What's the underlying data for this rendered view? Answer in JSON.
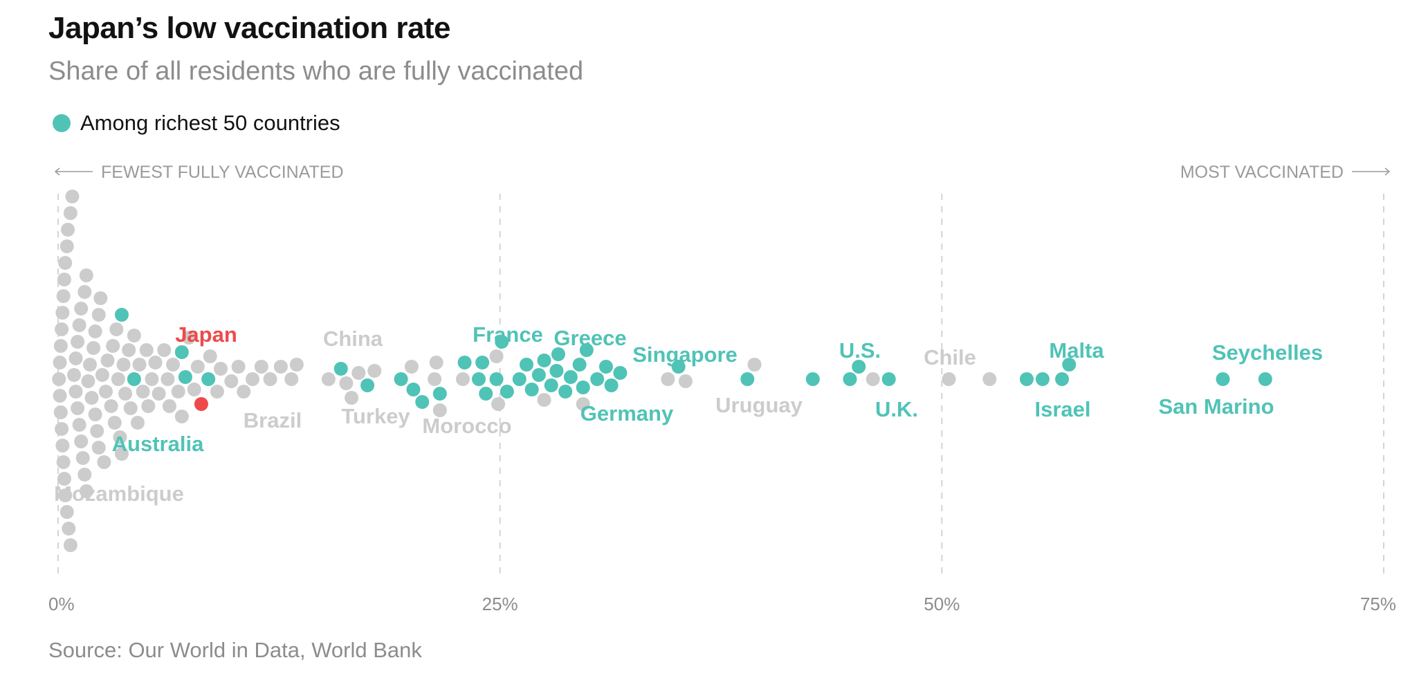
{
  "title": "Japan’s low vaccination rate",
  "subtitle": "Share of all residents who are fully vaccinated",
  "legend": {
    "label": "Among richest 50 countries"
  },
  "direction": {
    "left": "FEWEST FULLY VACCINATED",
    "right": "MOST VACCINATED"
  },
  "source": "Source: Our World in Data, World Bank",
  "colors": {
    "rich": "#4fc3b6",
    "other": "#cccccc",
    "highlight": "#ee4a4a",
    "gridline": "#d4d4d4"
  },
  "chart_data": {
    "type": "scatter",
    "xlabel": "",
    "ylabel": "",
    "xlim": [
      0,
      75
    ],
    "x_ticks": [
      "0%",
      "25%",
      "50%",
      "75%"
    ],
    "x_tick_values": [
      0,
      25,
      50,
      75
    ],
    "grid": true,
    "legend_position": "top-left",
    "labels": [
      {
        "text": "Japan",
        "group": "highlight"
      },
      {
        "text": "Australia",
        "group": "rich"
      },
      {
        "text": "Mozambique",
        "group": "other"
      },
      {
        "text": "Brazil",
        "group": "other"
      },
      {
        "text": "China",
        "group": "other"
      },
      {
        "text": "Turkey",
        "group": "other"
      },
      {
        "text": "Morocco",
        "group": "other"
      },
      {
        "text": "France",
        "group": "rich"
      },
      {
        "text": "Greece",
        "group": "rich"
      },
      {
        "text": "Germany",
        "group": "rich"
      },
      {
        "text": "Singapore",
        "group": "rich"
      },
      {
        "text": "Uruguay",
        "group": "other"
      },
      {
        "text": "U.S.",
        "group": "rich"
      },
      {
        "text": "U.K.",
        "group": "rich"
      },
      {
        "text": "Chile",
        "group": "other"
      },
      {
        "text": "Malta",
        "group": "rich"
      },
      {
        "text": "Israel",
        "group": "rich"
      },
      {
        "text": "Seychelles",
        "group": "rich"
      },
      {
        "text": "San Marino",
        "group": "rich"
      }
    ],
    "series": [
      {
        "name": "Among richest 50 countries",
        "group": "rich",
        "values": [
          3.6,
          4.3,
          7.0,
          7.2,
          8.5,
          16.0,
          17.5,
          19.4,
          20.1,
          20.6,
          21.6,
          23.0,
          23.8,
          24.0,
          24.2,
          24.8,
          25.1,
          25.4,
          26.1,
          26.5,
          26.8,
          27.2,
          27.5,
          27.9,
          28.2,
          28.3,
          28.7,
          29.0,
          29.5,
          29.7,
          29.9,
          30.5,
          31.0,
          31.3,
          31.8,
          35.1,
          39.0,
          42.7,
          44.8,
          45.3,
          47.0,
          54.8,
          55.7,
          56.8,
          57.2,
          65.9,
          68.3
        ]
      },
      {
        "name": "Japan",
        "group": "highlight",
        "values": [
          8.1
        ]
      },
      {
        "name": "",
        "group": "other",
        "values": [
          0.05,
          0.1,
          0.1,
          0.15,
          0.15,
          0.2,
          0.2,
          0.25,
          0.25,
          0.3,
          0.3,
          0.35,
          0.35,
          0.4,
          0.4,
          0.5,
          0.5,
          0.55,
          0.6,
          0.7,
          0.7,
          0.8,
          0.9,
          1.0,
          1.0,
          1.1,
          1.1,
          1.2,
          1.2,
          1.3,
          1.3,
          1.4,
          1.5,
          1.5,
          1.6,
          1.6,
          1.7,
          1.8,
          1.9,
          2.0,
          2.1,
          2.1,
          2.2,
          2.3,
          2.3,
          2.4,
          2.5,
          2.6,
          2.7,
          2.8,
          3.0,
          3.1,
          3.2,
          3.3,
          3.4,
          3.5,
          3.6,
          3.7,
          3.8,
          4.0,
          4.1,
          4.3,
          4.5,
          4.6,
          4.8,
          5.0,
          5.1,
          5.3,
          5.5,
          5.7,
          6.0,
          6.2,
          6.3,
          6.5,
          6.8,
          7.0,
          7.4,
          7.7,
          7.9,
          8.6,
          9.0,
          9.2,
          9.8,
          10.2,
          10.5,
          11.0,
          11.5,
          12.0,
          12.6,
          13.2,
          13.5,
          15.3,
          16.3,
          16.6,
          17.0,
          17.9,
          20.0,
          21.3,
          21.4,
          21.6,
          22.9,
          24.8,
          24.9,
          27.5,
          29.7,
          34.5,
          35.5,
          39.4,
          46.1,
          50.4,
          52.7
        ]
      }
    ]
  }
}
